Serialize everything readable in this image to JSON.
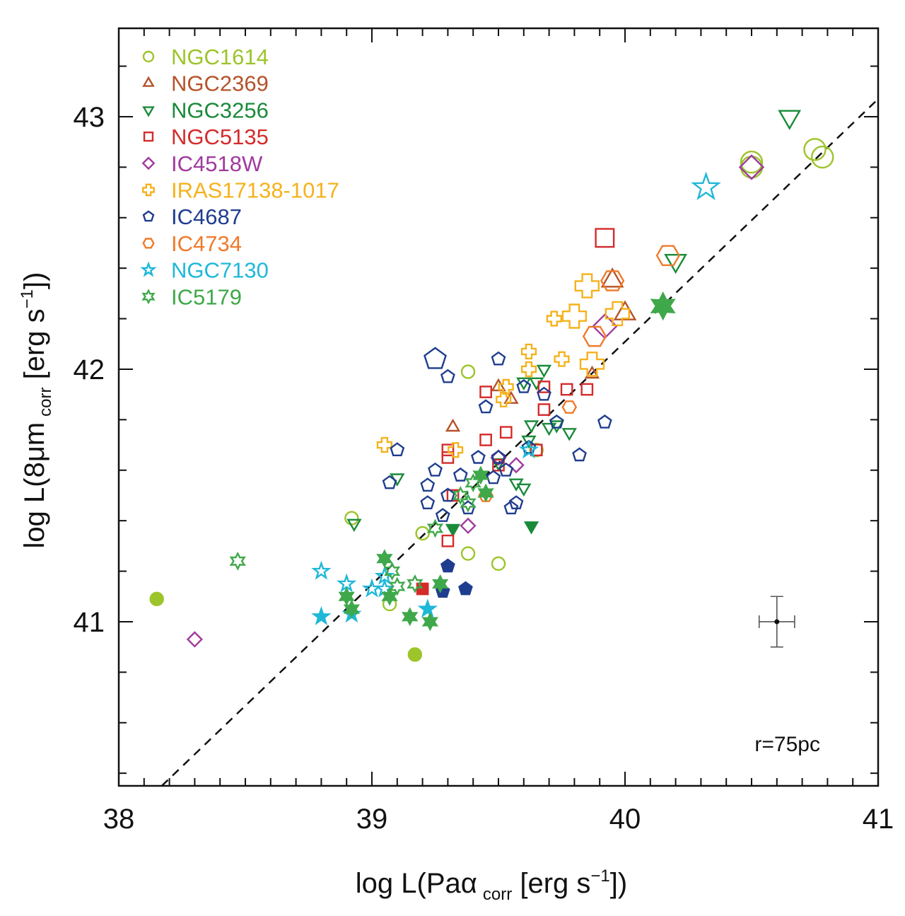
{
  "chart_data": {
    "type": "scatter",
    "xlabel": {
      "pre": "log L(Paα",
      "sub": "corr",
      "post": " [erg s",
      "sup": "−1",
      "end": "])"
    },
    "ylabel": {
      "pre": "log L(8μm",
      "sub": "corr",
      "post": " [erg s",
      "sup": "−1",
      "end": "])"
    },
    "xlim": [
      38,
      41
    ],
    "ylim": [
      40.35,
      43.35
    ],
    "xticks": [
      38,
      39,
      40,
      41
    ],
    "xtick_labels": [
      "38",
      "39",
      "40",
      "41"
    ],
    "yticks": [
      41,
      42,
      43
    ],
    "ytick_labels": [
      "41",
      "42",
      "43"
    ],
    "annotation": "r=75pc",
    "reference_line": {
      "style": "dashed",
      "points": [
        [
          38.17,
          40.35
        ],
        [
          41,
          43.07
        ]
      ]
    },
    "error_bar": {
      "x": 40.6,
      "y": 41.0,
      "xerr": 0.07,
      "yerr": 0.1
    },
    "series": [
      {
        "name": "NGC1614",
        "color": "#9dc42a",
        "marker": "circle",
        "points": [
          [
            38.15,
            41.09,
            1
          ],
          [
            39.17,
            40.87,
            1
          ],
          [
            39.38,
            41.99,
            0
          ],
          [
            39.2,
            41.35,
            0
          ],
          [
            39.38,
            41.27,
            0
          ],
          [
            39.5,
            41.23,
            0
          ],
          [
            38.92,
            41.41,
            0
          ],
          [
            39.07,
            41.07,
            0
          ],
          [
            39.65,
            41.68,
            0
          ],
          [
            40.5,
            42.82,
            0
          ],
          [
            40.5,
            42.8,
            0
          ],
          [
            40.75,
            42.87,
            0
          ],
          [
            40.78,
            42.84,
            0
          ]
        ]
      },
      {
        "name": "NGC2369",
        "color": "#b5532a",
        "marker": "triangle-up",
        "points": [
          [
            39.32,
            41.77,
            0
          ],
          [
            39.5,
            41.93,
            0
          ],
          [
            39.55,
            41.88,
            0
          ],
          [
            39.87,
            41.98,
            0
          ],
          [
            40.0,
            42.22,
            0
          ],
          [
            39.95,
            42.35,
            0
          ]
        ]
      },
      {
        "name": "NGC3256",
        "color": "#1a8a3a",
        "marker": "triangle-down",
        "points": [
          [
            38.93,
            41.39,
            0
          ],
          [
            39.1,
            41.57,
            0
          ],
          [
            39.32,
            41.37,
            1
          ],
          [
            39.5,
            41.63,
            0
          ],
          [
            39.57,
            41.55,
            0
          ],
          [
            39.6,
            41.53,
            0
          ],
          [
            39.62,
            41.72,
            0
          ],
          [
            39.63,
            41.78,
            0
          ],
          [
            39.63,
            41.38,
            1
          ],
          [
            39.6,
            41.95,
            0
          ],
          [
            39.65,
            41.95,
            0
          ],
          [
            39.68,
            42.0,
            0
          ],
          [
            39.7,
            41.77,
            0
          ],
          [
            39.73,
            41.78,
            0
          ],
          [
            39.78,
            41.75,
            0
          ],
          [
            40.2,
            42.43,
            0
          ],
          [
            40.65,
            43.0,
            0
          ]
        ]
      },
      {
        "name": "NGC5135",
        "color": "#d42b2b",
        "marker": "square",
        "points": [
          [
            39.2,
            41.13,
            1
          ],
          [
            39.3,
            41.32,
            0
          ],
          [
            39.3,
            41.65,
            0
          ],
          [
            39.3,
            41.68,
            0
          ],
          [
            39.32,
            41.5,
            0
          ],
          [
            39.45,
            41.91,
            0
          ],
          [
            39.45,
            41.72,
            0
          ],
          [
            39.5,
            41.62,
            0
          ],
          [
            39.53,
            41.75,
            0
          ],
          [
            39.65,
            41.68,
            0
          ],
          [
            39.68,
            41.84,
            0
          ],
          [
            39.68,
            41.93,
            0
          ],
          [
            39.77,
            41.92,
            0
          ],
          [
            39.85,
            41.92,
            0
          ],
          [
            39.92,
            42.52,
            0
          ]
        ]
      },
      {
        "name": "IC4518W",
        "color": "#a03a9e",
        "marker": "diamond",
        "points": [
          [
            38.3,
            40.93,
            0
          ],
          [
            39.38,
            41.38,
            0
          ],
          [
            39.5,
            41.65,
            0
          ],
          [
            39.57,
            41.62,
            0
          ],
          [
            39.92,
            42.17,
            0
          ],
          [
            40.5,
            42.8,
            0
          ]
        ]
      },
      {
        "name": "IRAS17138-1017",
        "color": "#f5b21c",
        "marker": "cross",
        "points": [
          [
            39.05,
            41.7,
            0
          ],
          [
            39.33,
            41.68,
            0
          ],
          [
            39.52,
            41.88,
            0
          ],
          [
            39.53,
            41.93,
            0
          ],
          [
            39.62,
            42.0,
            0
          ],
          [
            39.62,
            42.07,
            0
          ],
          [
            39.72,
            42.2,
            0
          ],
          [
            39.75,
            42.04,
            0
          ],
          [
            39.8,
            42.21,
            0
          ],
          [
            39.85,
            42.33,
            0
          ],
          [
            39.87,
            42.02,
            0
          ],
          [
            39.97,
            42.22,
            0
          ]
        ]
      },
      {
        "name": "IC4687",
        "color": "#1f3d8f",
        "marker": "pentagon",
        "points": [
          [
            39.25,
            42.04,
            0
          ],
          [
            39.3,
            41.97,
            0
          ],
          [
            39.5,
            42.04,
            0
          ],
          [
            39.45,
            41.85,
            0
          ],
          [
            39.6,
            41.93,
            0
          ],
          [
            39.68,
            41.9,
            0
          ],
          [
            39.73,
            41.79,
            0
          ],
          [
            39.92,
            41.79,
            0
          ],
          [
            39.1,
            41.68,
            0
          ],
          [
            39.07,
            41.55,
            0
          ],
          [
            39.22,
            41.54,
            0
          ],
          [
            39.25,
            41.6,
            0
          ],
          [
            39.3,
            41.5,
            0
          ],
          [
            39.35,
            41.58,
            0
          ],
          [
            39.42,
            41.65,
            0
          ],
          [
            39.5,
            41.65,
            0
          ],
          [
            39.48,
            41.57,
            0
          ],
          [
            39.53,
            41.6,
            0
          ],
          [
            39.55,
            41.45,
            0
          ],
          [
            39.57,
            41.47,
            0
          ],
          [
            39.62,
            41.69,
            0
          ],
          [
            39.82,
            41.66,
            0
          ],
          [
            39.22,
            41.47,
            0
          ],
          [
            39.28,
            41.42,
            0
          ],
          [
            39.38,
            41.45,
            0
          ],
          [
            39.3,
            41.22,
            1
          ],
          [
            39.28,
            41.12,
            1
          ],
          [
            39.37,
            41.13,
            1
          ]
        ]
      },
      {
        "name": "IC4734",
        "color": "#f07a2a",
        "marker": "hexagon",
        "points": [
          [
            39.45,
            41.5,
            0
          ],
          [
            39.78,
            41.85,
            0
          ],
          [
            39.88,
            42.13,
            0
          ],
          [
            39.95,
            42.35,
            0
          ],
          [
            40.17,
            42.45,
            0
          ]
        ]
      },
      {
        "name": "NGC7130",
        "color": "#1fb8d8",
        "marker": "star5",
        "points": [
          [
            38.8,
            41.02,
            1
          ],
          [
            38.8,
            41.2,
            0
          ],
          [
            38.9,
            41.15,
            0
          ],
          [
            38.92,
            41.03,
            1
          ],
          [
            39.0,
            41.13,
            0
          ],
          [
            39.05,
            41.13,
            0
          ],
          [
            39.05,
            41.18,
            0
          ],
          [
            39.22,
            41.05,
            1
          ],
          [
            39.62,
            41.68,
            0
          ],
          [
            40.32,
            42.72,
            0
          ]
        ]
      },
      {
        "name": "IC5179",
        "color": "#3fa84a",
        "marker": "star6",
        "points": [
          [
            38.47,
            41.24,
            0
          ],
          [
            38.9,
            41.1,
            1
          ],
          [
            38.92,
            41.05,
            1
          ],
          [
            39.05,
            41.25,
            1
          ],
          [
            39.07,
            41.1,
            1
          ],
          [
            39.08,
            41.2,
            0
          ],
          [
            39.1,
            41.14,
            0
          ],
          [
            39.15,
            41.02,
            1
          ],
          [
            39.17,
            41.15,
            0
          ],
          [
            39.23,
            41.0,
            1
          ],
          [
            39.27,
            41.15,
            1
          ],
          [
            39.25,
            41.37,
            0
          ],
          [
            39.35,
            41.5,
            0
          ],
          [
            39.38,
            41.47,
            0
          ],
          [
            39.4,
            41.55,
            0
          ],
          [
            39.43,
            41.58,
            1
          ],
          [
            39.45,
            41.51,
            1
          ],
          [
            40.15,
            42.25,
            1
          ]
        ]
      }
    ]
  }
}
